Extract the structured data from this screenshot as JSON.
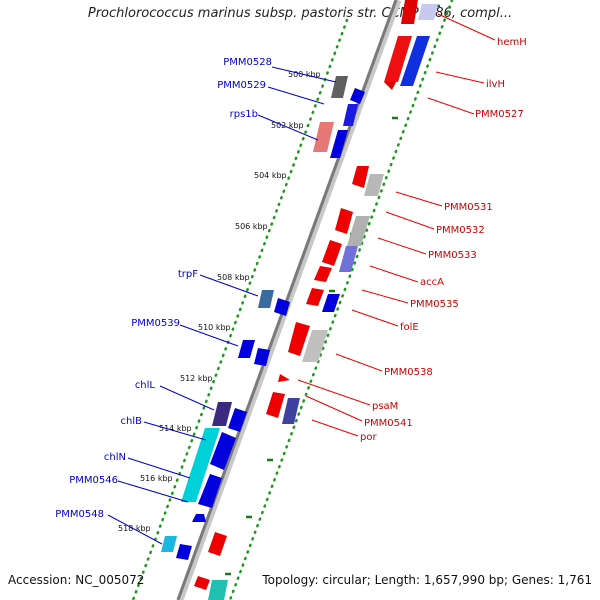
{
  "title": "Prochlorococcus marinus subsp. pastoris str. CCMP1986, compl...",
  "footer": {
    "accession": "Accession: NC_005072",
    "info": "Topology: circular; Length: 1,657,990 bp; Genes: 1,761"
  },
  "colors": {
    "forward_label": "#0000cc",
    "reverse_label": "#cc0000",
    "scale_tick": "#1a7a1a",
    "backbone": "#888888"
  },
  "scale_labels": [
    "500 kbp",
    "502 kbp",
    "504 kbp",
    "506 kbp",
    "508 kbp",
    "510 kbp",
    "512 kbp",
    "514 kbp",
    "516 kbp",
    "518 kbp"
  ],
  "forward_genes": [
    "PMM0528",
    "PMM0529",
    "rps1b",
    "trpF",
    "PMM0539",
    "chlL",
    "chlB",
    "chlN",
    "PMM0546",
    "PMM0548"
  ],
  "reverse_genes": [
    "hemH",
    "ilvH",
    "PMM0527",
    "PMM0531",
    "PMM0532",
    "PMM0533",
    "accA",
    "PMM0535",
    "folE",
    "PMM0538",
    "psaM",
    "PMM0541",
    "por"
  ]
}
